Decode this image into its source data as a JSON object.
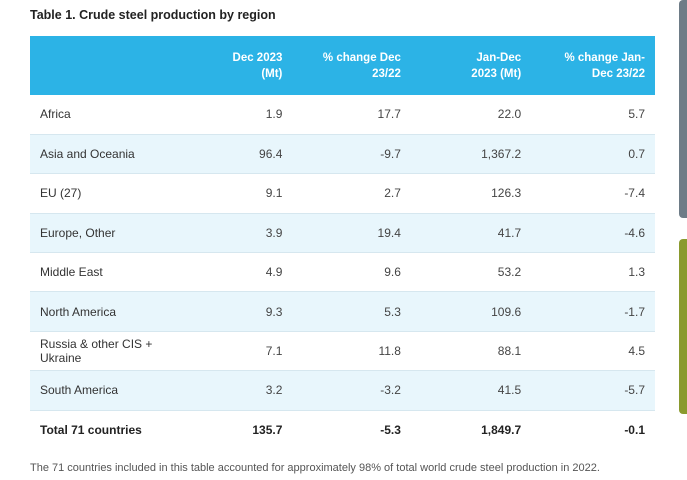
{
  "title": "Table 1. Crude steel production by region",
  "headers": [
    "",
    "Dec 2023 (Mt)",
    "% change Dec 23/22",
    "Jan-Dec 2023 (Mt)",
    "% change Jan-Dec 23/22"
  ],
  "header_lines": [
    [
      "",
      ""
    ],
    [
      "Dec 2023",
      "(Mt)"
    ],
    [
      "% change Dec",
      "23/22"
    ],
    [
      "Jan-Dec",
      "2023 (Mt)"
    ],
    [
      "% change Jan-",
      "Dec 23/22"
    ]
  ],
  "rows": [
    [
      "Africa",
      "1.9",
      "17.7",
      "22.0",
      "5.7"
    ],
    [
      "Asia and Oceania",
      "96.4",
      "-9.7",
      "1,367.2",
      "0.7"
    ],
    [
      "EU (27)",
      "9.1",
      "2.7",
      "126.3",
      "-7.4"
    ],
    [
      "Europe, Other",
      "3.9",
      "19.4",
      "41.7",
      "-4.6"
    ],
    [
      "Middle East",
      "4.9",
      "9.6",
      "53.2",
      "1.3"
    ],
    [
      "North America",
      "9.3",
      "5.3",
      "109.6",
      "-1.7"
    ],
    [
      "Russia & other CIS + Ukraine",
      "7.1",
      "11.8",
      "88.1",
      "4.5"
    ],
    [
      "South America",
      "3.2",
      "-3.2",
      "41.5",
      "-5.7"
    ]
  ],
  "total": [
    "Total 71 countries",
    "135.7",
    "-5.3",
    "1,849.7",
    "-0.1"
  ],
  "footnote": "The 71 countries included in this table accounted for approximately 98% of total world crude steel production in 2022.",
  "colors": {
    "header_bg": "#2cb3e6",
    "alt_row_bg": "#e8f6fc",
    "scrollbar_top": "#6e7c87",
    "scrollbar_bottom": "#8a9a2e"
  }
}
